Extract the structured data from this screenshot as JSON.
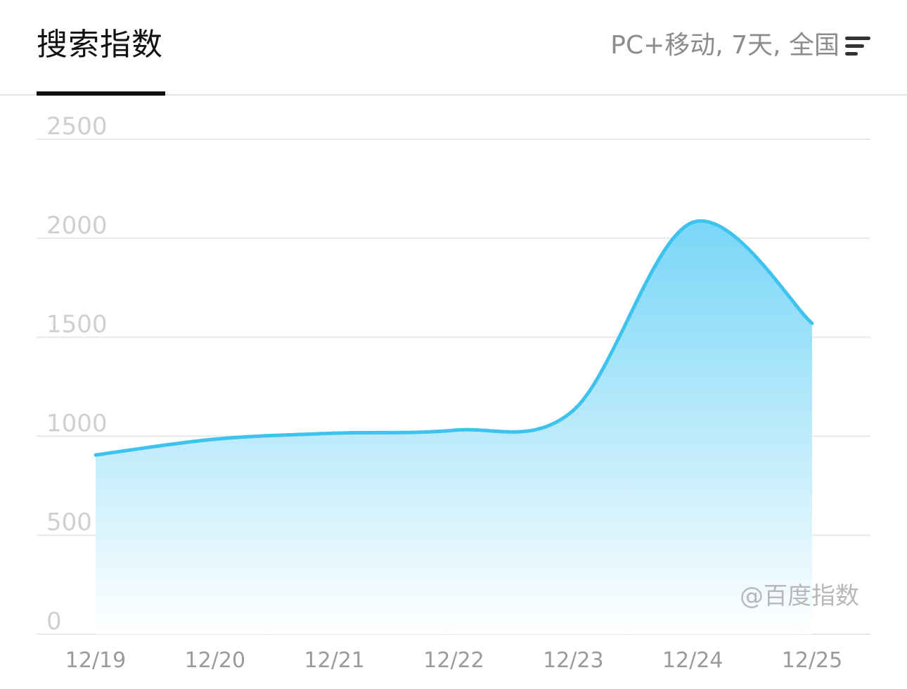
{
  "header": {
    "tab_title": "搜索指数",
    "filter_label": "PC+移动, 7天, 全国"
  },
  "icons": {
    "filter": "filter-lines-icon"
  },
  "colors": {
    "line": "#3ec3ef",
    "fill_top": "#72d4f6",
    "fill_bottom": "#ffffff",
    "grid": "#e8e8e8",
    "axis_text": "#cfcfcf",
    "x_text": "#9a9a9a",
    "watermark": "#b8b8b8"
  },
  "chart_data": {
    "type": "area",
    "categories": [
      "12/19",
      "12/20",
      "12/21",
      "12/22",
      "12/23",
      "12/24",
      "12/25"
    ],
    "series": [
      {
        "values": [
          905,
          985,
          1015,
          1030,
          1130,
          2080,
          1570
        ]
      }
    ],
    "ylim": [
      0,
      2500
    ],
    "yticks": [
      0,
      500,
      1000,
      1500,
      2000,
      2500
    ],
    "grid": true,
    "watermark": "@百度指数"
  }
}
